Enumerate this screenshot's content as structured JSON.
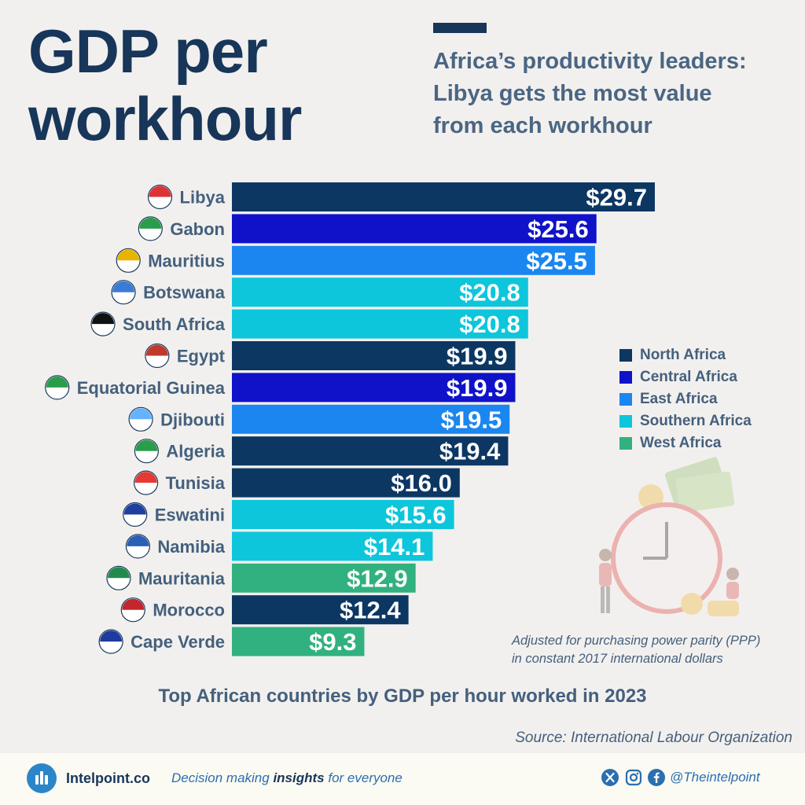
{
  "header": {
    "title_line1": "GDP per",
    "title_line2": "workhour",
    "subtitle_line1": "Africa’s productivity leaders:",
    "subtitle_line2": "Libya gets the most value",
    "subtitle_line3": "from each workhour"
  },
  "colors": {
    "North Africa": "#0d3763",
    "Central Africa": "#1012c9",
    "East Africa": "#1b86ef",
    "Southern Africa": "#0dc6db",
    "West Africa": "#31b17f"
  },
  "chart_data": {
    "type": "bar",
    "orientation": "horizontal",
    "title": "Top African countries by GDP per hour worked in 2023",
    "value_prefix": "$",
    "xlim": [
      0,
      29.7
    ],
    "grid": false,
    "legend_position": "right",
    "categories": [
      "Libya",
      "Gabon",
      "Mauritius",
      "Botswana",
      "South Africa",
      "Egypt",
      "Equatorial Guinea",
      "Djibouti",
      "Algeria",
      "Tunisia",
      "Eswatini",
      "Namibia",
      "Mauritania",
      "Morocco",
      "Cape Verde"
    ],
    "values": [
      29.7,
      25.6,
      25.5,
      20.8,
      20.8,
      19.9,
      19.9,
      19.5,
      19.4,
      16.0,
      15.6,
      14.1,
      12.9,
      12.4,
      9.3
    ],
    "labels": [
      "$29.7",
      "$25.6",
      "$25.5",
      "$20.8",
      "$20.8",
      "$19.9",
      "$19.9",
      "$19.5",
      "$19.4",
      "$16.0",
      "$15.6",
      "$14.1",
      "$12.9",
      "$12.4",
      "$9.3"
    ],
    "regions": [
      "North Africa",
      "Central Africa",
      "East Africa",
      "Southern Africa",
      "Southern Africa",
      "North Africa",
      "Central Africa",
      "East Africa",
      "North Africa",
      "North Africa",
      "Southern Africa",
      "Southern Africa",
      "West Africa",
      "North Africa",
      "West Africa"
    ],
    "legend": [
      "North Africa",
      "Central Africa",
      "East Africa",
      "Southern Africa",
      "West Africa"
    ]
  },
  "note": {
    "line1": "Adjusted for purchasing power parity (PPP)",
    "line2": "in constant 2017 international dollars"
  },
  "source": "Source: International Labour Organization",
  "footer": {
    "brand": "Intelpoint.co",
    "tagline_pre": "Decision making ",
    "tagline_bold": "insights",
    "tagline_post": " for everyone",
    "handle": "@Theintelpoint",
    "icons": [
      "x-icon",
      "instagram-icon",
      "facebook-icon"
    ]
  }
}
